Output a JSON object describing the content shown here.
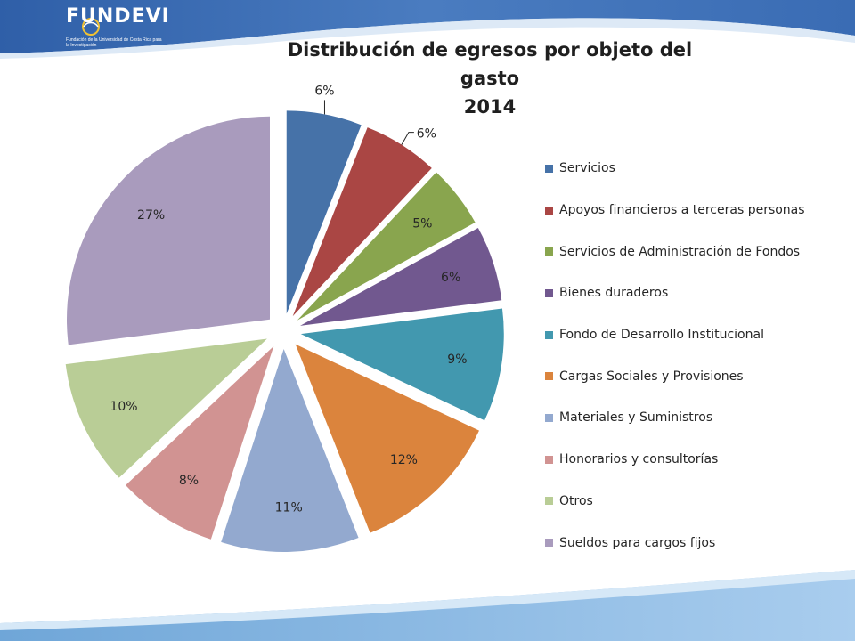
{
  "logo": {
    "name": "FUNDEVI",
    "tagline": "Fundación de la Universidad de Costa Rica para la Investigación"
  },
  "colors": {
    "header_band": "#3f6fb8",
    "footer_band": "#8fbde3"
  },
  "chart_data": {
    "type": "pie",
    "title": "Distribución de egresos por objeto del gasto 2014",
    "title_lines": [
      "Distribución de egresos por objeto del gasto",
      "2014"
    ],
    "legend_position": "right",
    "exploded": true,
    "slices": [
      {
        "label": "Servicios",
        "value": 6,
        "display": "6%",
        "color": "#4672a8"
      },
      {
        "label": "Apoyos financieros a terceras personas",
        "value": 6,
        "display": "6%",
        "color": "#aa4644"
      },
      {
        "label": "Servicios de Administración de Fondos",
        "value": 5,
        "display": "5%",
        "color": "#89a54e"
      },
      {
        "label": "Bienes duraderos",
        "value": 6,
        "display": "6%",
        "color": "#71588f"
      },
      {
        "label": "Fondo de Desarrollo Institucional",
        "value": 9,
        "display": "9%",
        "color": "#4298af"
      },
      {
        "label": "Cargas Sociales y Provisiones",
        "value": 12,
        "display": "12%",
        "color": "#db843d"
      },
      {
        "label": "Materiales y Suministros",
        "value": 11,
        "display": "11%",
        "color": "#93a9cf"
      },
      {
        "label": "Honorarios y consultorías",
        "value": 8,
        "display": "8%",
        "color": "#d19392"
      },
      {
        "label": "Otros",
        "value": 10,
        "display": "10%",
        "color": "#b9cd96"
      },
      {
        "label": "Sueldos para cargos fijos",
        "value": 27,
        "display": "27%",
        "color": "#a99bbd"
      }
    ]
  }
}
